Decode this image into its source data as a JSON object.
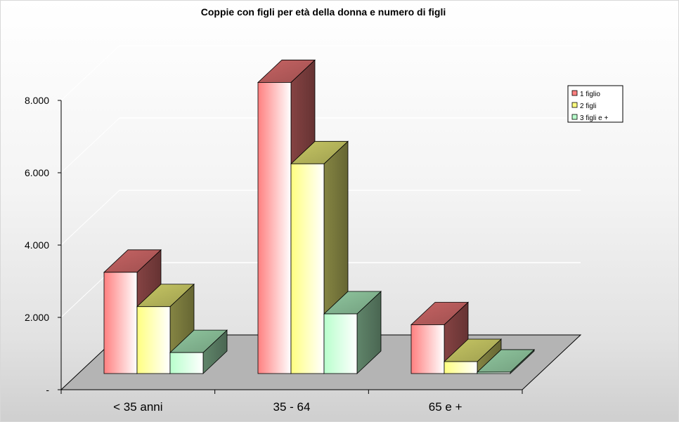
{
  "chart_data": {
    "type": "bar",
    "title": "Coppie con figli per età della donna e numero di figli",
    "xlabel": "",
    "ylabel": "",
    "categories": [
      "< 35 anni",
      "35 - 64",
      "65 e +"
    ],
    "series": [
      {
        "name": "1 figlio",
        "values": [
          2800,
          8050,
          1350
        ],
        "color": "#ff8080"
      },
      {
        "name": "2 figli",
        "values": [
          1850,
          5800,
          330
        ],
        "color": "#ffff80"
      },
      {
        "name": "3 figli e +",
        "values": [
          580,
          1650,
          40
        ],
        "color": "#b8ffcc"
      }
    ],
    "ylim": [
      0,
      8000
    ],
    "yticks": [
      {
        "value": 0,
        "label": "-"
      },
      {
        "value": 2000,
        "label": "2.000"
      },
      {
        "value": 4000,
        "label": "4.000"
      },
      {
        "value": 6000,
        "label": "6.000"
      },
      {
        "value": 8000,
        "label": "8.000"
      }
    ],
    "grid": true,
    "legend_position": "right",
    "view": "3d"
  }
}
